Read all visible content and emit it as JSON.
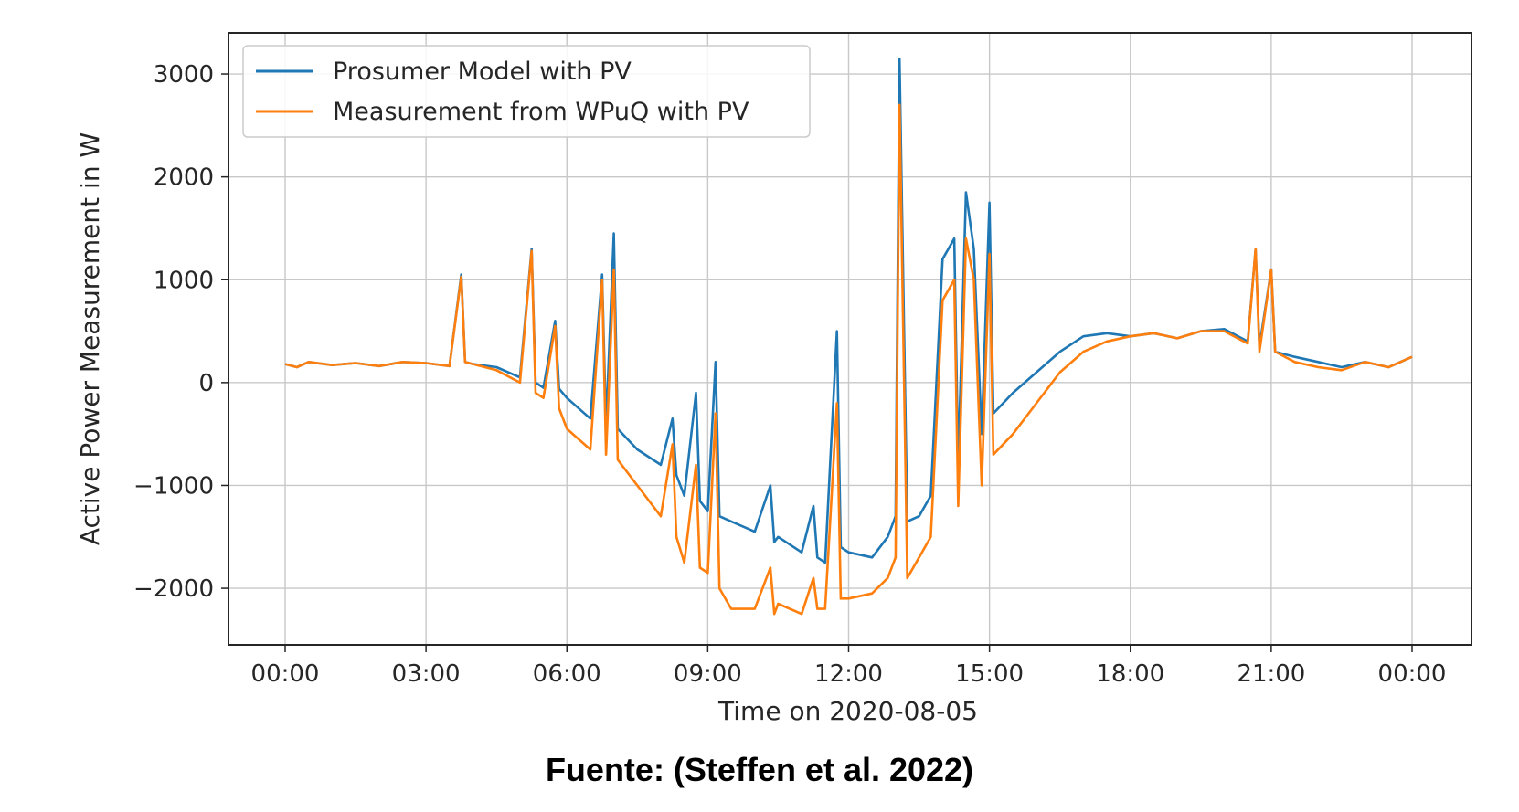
{
  "chart_data": {
    "type": "line",
    "title": "",
    "xlabel": "Time on 2020-08-05",
    "ylabel": "Active Power Measurement in W",
    "xlim": [
      "2020-08-05T00:00",
      "2020-08-06T00:00"
    ],
    "ylim": [
      -2550,
      3400
    ],
    "x_ticks": [
      "00:00",
      "03:00",
      "06:00",
      "09:00",
      "12:00",
      "15:00",
      "18:00",
      "21:00",
      "00:00"
    ],
    "y_ticks": [
      -2000,
      -1000,
      0,
      1000,
      2000,
      3000
    ],
    "y_tick_labels": [
      "−2000",
      "−1000",
      "0",
      "1000",
      "2000",
      "3000"
    ],
    "grid": true,
    "legend_position": "top-left",
    "colors": {
      "prosumer": "#1f77b4",
      "measurement": "#ff7f0e"
    },
    "series": [
      {
        "name": "Prosumer Model with PV",
        "color": "#1f77b4",
        "points": [
          [
            "00:00",
            180
          ],
          [
            "00:15",
            150
          ],
          [
            "00:30",
            200
          ],
          [
            "01:00",
            170
          ],
          [
            "01:30",
            190
          ],
          [
            "02:00",
            160
          ],
          [
            "02:30",
            200
          ],
          [
            "03:00",
            190
          ],
          [
            "03:30",
            160
          ],
          [
            "03:45",
            1050
          ],
          [
            "03:50",
            200
          ],
          [
            "04:00",
            180
          ],
          [
            "04:30",
            150
          ],
          [
            "05:00",
            50
          ],
          [
            "05:15",
            1300
          ],
          [
            "05:20",
            0
          ],
          [
            "05:30",
            -50
          ],
          [
            "05:45",
            600
          ],
          [
            "05:50",
            -60
          ],
          [
            "06:00",
            -150
          ],
          [
            "06:30",
            -350
          ],
          [
            "06:45",
            1050
          ],
          [
            "06:50",
            -420
          ],
          [
            "07:00",
            1450
          ],
          [
            "07:05",
            -450
          ],
          [
            "07:30",
            -650
          ],
          [
            "08:00",
            -800
          ],
          [
            "08:15",
            -350
          ],
          [
            "08:20",
            -900
          ],
          [
            "08:30",
            -1100
          ],
          [
            "08:45",
            -100
          ],
          [
            "08:50",
            -1150
          ],
          [
            "09:00",
            -1250
          ],
          [
            "09:10",
            200
          ],
          [
            "09:15",
            -1300
          ],
          [
            "09:30",
            -1350
          ],
          [
            "10:00",
            -1450
          ],
          [
            "10:20",
            -1000
          ],
          [
            "10:25",
            -1550
          ],
          [
            "10:30",
            -1500
          ],
          [
            "11:00",
            -1650
          ],
          [
            "11:15",
            -1200
          ],
          [
            "11:20",
            -1700
          ],
          [
            "11:30",
            -1750
          ],
          [
            "11:45",
            500
          ],
          [
            "11:50",
            -1600
          ],
          [
            "12:00",
            -1650
          ],
          [
            "12:30",
            -1700
          ],
          [
            "12:50",
            -1500
          ],
          [
            "13:00",
            -1300
          ],
          [
            "13:05",
            3150
          ],
          [
            "13:15",
            -1350
          ],
          [
            "13:30",
            -1300
          ],
          [
            "13:45",
            -1100
          ],
          [
            "14:00",
            1200
          ],
          [
            "14:15",
            1400
          ],
          [
            "14:20",
            -800
          ],
          [
            "14:30",
            1850
          ],
          [
            "14:40",
            1300
          ],
          [
            "14:50",
            -500
          ],
          [
            "15:00",
            1750
          ],
          [
            "15:05",
            -300
          ],
          [
            "15:30",
            -100
          ],
          [
            "16:00",
            100
          ],
          [
            "16:30",
            300
          ],
          [
            "17:00",
            450
          ],
          [
            "17:30",
            480
          ],
          [
            "18:00",
            450
          ],
          [
            "18:30",
            480
          ],
          [
            "19:00",
            430
          ],
          [
            "19:30",
            500
          ],
          [
            "20:00",
            520
          ],
          [
            "20:30",
            400
          ],
          [
            "20:40",
            1300
          ],
          [
            "20:45",
            350
          ],
          [
            "21:00",
            1100
          ],
          [
            "21:05",
            300
          ],
          [
            "21:30",
            250
          ],
          [
            "22:00",
            200
          ],
          [
            "22:30",
            150
          ],
          [
            "23:00",
            200
          ],
          [
            "23:30",
            150
          ],
          [
            "24:00",
            250
          ]
        ]
      },
      {
        "name": "Measurement from WPuQ with PV",
        "color": "#ff7f0e",
        "points": [
          [
            "00:00",
            180
          ],
          [
            "00:15",
            150
          ],
          [
            "00:30",
            200
          ],
          [
            "01:00",
            170
          ],
          [
            "01:30",
            190
          ],
          [
            "02:00",
            160
          ],
          [
            "02:30",
            200
          ],
          [
            "03:00",
            190
          ],
          [
            "03:30",
            160
          ],
          [
            "03:45",
            1030
          ],
          [
            "03:50",
            200
          ],
          [
            "04:00",
            180
          ],
          [
            "04:30",
            120
          ],
          [
            "05:00",
            0
          ],
          [
            "05:15",
            1280
          ],
          [
            "05:20",
            -100
          ],
          [
            "05:30",
            -150
          ],
          [
            "05:45",
            550
          ],
          [
            "05:50",
            -250
          ],
          [
            "06:00",
            -450
          ],
          [
            "06:30",
            -650
          ],
          [
            "06:45",
            1000
          ],
          [
            "06:50",
            -700
          ],
          [
            "07:00",
            1100
          ],
          [
            "07:05",
            -750
          ],
          [
            "07:30",
            -1000
          ],
          [
            "08:00",
            -1300
          ],
          [
            "08:15",
            -600
          ],
          [
            "08:20",
            -1500
          ],
          [
            "08:30",
            -1750
          ],
          [
            "08:45",
            -800
          ],
          [
            "08:50",
            -1800
          ],
          [
            "09:00",
            -1850
          ],
          [
            "09:10",
            -300
          ],
          [
            "09:15",
            -2000
          ],
          [
            "09:30",
            -2200
          ],
          [
            "10:00",
            -2200
          ],
          [
            "10:20",
            -1800
          ],
          [
            "10:25",
            -2250
          ],
          [
            "10:30",
            -2150
          ],
          [
            "11:00",
            -2250
          ],
          [
            "11:15",
            -1900
          ],
          [
            "11:20",
            -2200
          ],
          [
            "11:30",
            -2200
          ],
          [
            "11:45",
            -200
          ],
          [
            "11:50",
            -2100
          ],
          [
            "12:00",
            -2100
          ],
          [
            "12:30",
            -2050
          ],
          [
            "12:50",
            -1900
          ],
          [
            "13:00",
            -1700
          ],
          [
            "13:05",
            2700
          ],
          [
            "13:15",
            -1900
          ],
          [
            "13:30",
            -1700
          ],
          [
            "13:45",
            -1500
          ],
          [
            "14:00",
            800
          ],
          [
            "14:15",
            1000
          ],
          [
            "14:20",
            -1200
          ],
          [
            "14:30",
            1400
          ],
          [
            "14:40",
            1000
          ],
          [
            "14:50",
            -1000
          ],
          [
            "15:00",
            1250
          ],
          [
            "15:05",
            -700
          ],
          [
            "15:30",
            -500
          ],
          [
            "16:00",
            -200
          ],
          [
            "16:30",
            100
          ],
          [
            "17:00",
            300
          ],
          [
            "17:30",
            400
          ],
          [
            "18:00",
            450
          ],
          [
            "18:30",
            480
          ],
          [
            "19:00",
            430
          ],
          [
            "19:30",
            500
          ],
          [
            "20:00",
            500
          ],
          [
            "20:30",
            380
          ],
          [
            "20:40",
            1300
          ],
          [
            "20:45",
            300
          ],
          [
            "21:00",
            1100
          ],
          [
            "21:05",
            300
          ],
          [
            "21:30",
            200
          ],
          [
            "22:00",
            150
          ],
          [
            "22:30",
            120
          ],
          [
            "23:00",
            200
          ],
          [
            "23:30",
            150
          ],
          [
            "24:00",
            250
          ]
        ]
      }
    ]
  },
  "caption": "Fuente: (Steffen et al. 2022)"
}
